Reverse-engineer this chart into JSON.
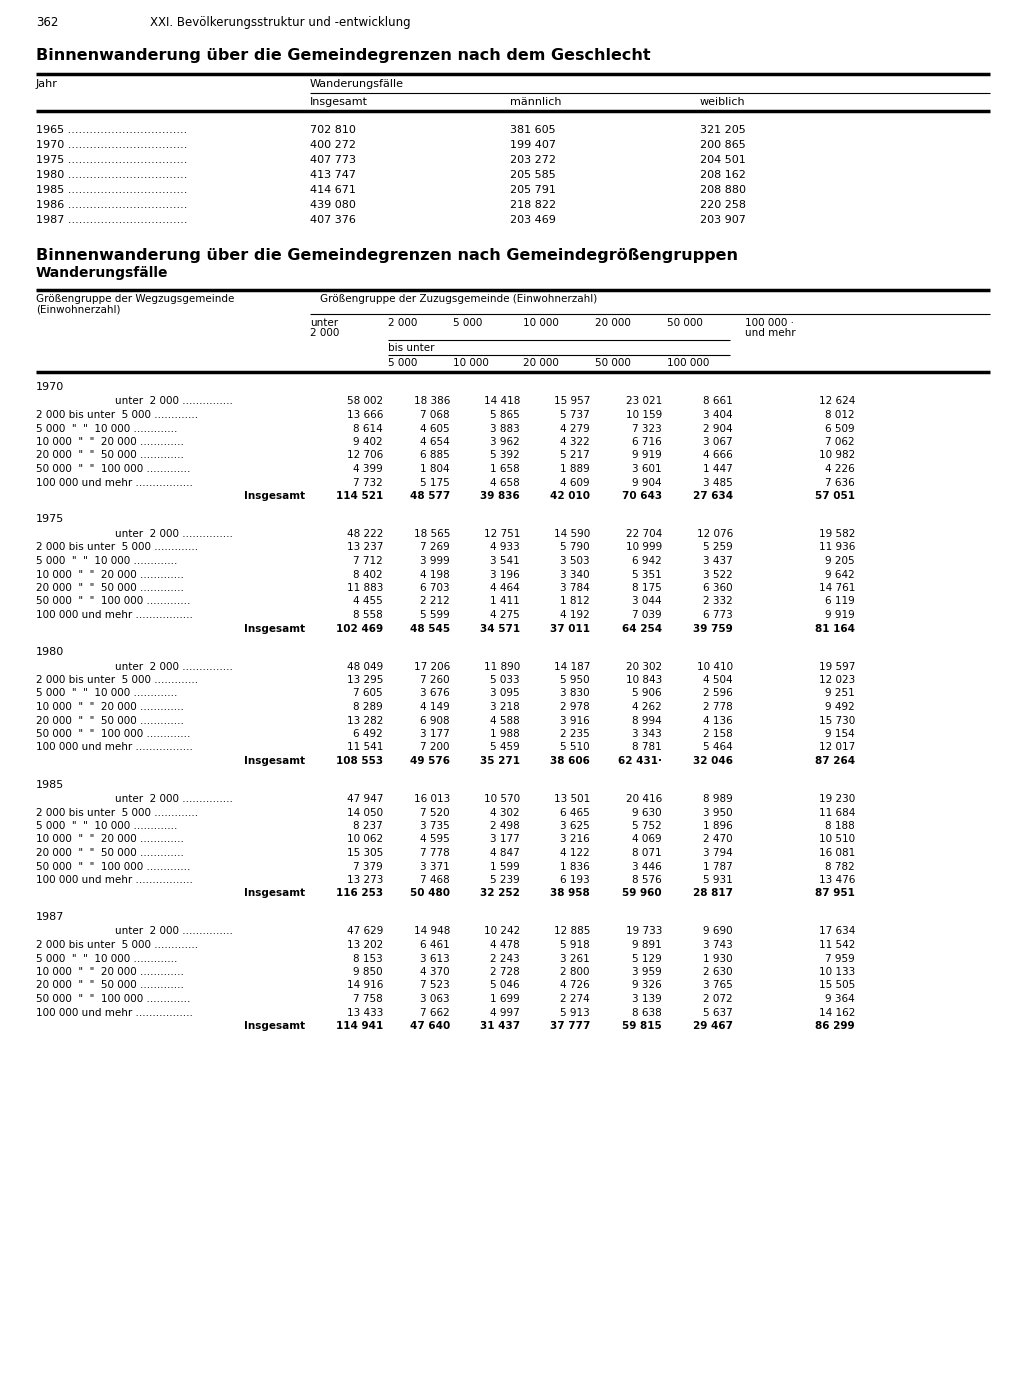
{
  "page_number": "362",
  "chapter_header": "XXI. Bevölkerungsstruktur und -entwicklung",
  "title1": "Binnenwanderung über die Gemeindegrenzen nach dem Geschlecht",
  "title2": "Binnenwanderung über die Gemeindegrenzen nach Gemeindegrößengruppen",
  "subtitle2": "Wanderungsfälle",
  "table1_subheader": "Wanderungsfälle",
  "table1_data": [
    [
      "1965",
      "702 810",
      "381 605",
      "321 205"
    ],
    [
      "1970",
      "400 272",
      "199 407",
      "200 865"
    ],
    [
      "1975",
      "407 773",
      "203 272",
      "204 501"
    ],
    [
      "1980",
      "413 747",
      "205 585",
      "208 162"
    ],
    [
      "1985",
      "414 671",
      "205 791",
      "208 880"
    ],
    [
      "1986",
      "439 080",
      "218 822",
      "220 258"
    ],
    [
      "1987",
      "407 376",
      "203 469",
      "203 907"
    ]
  ],
  "year_blocks": [
    {
      "year": "1970",
      "rows": [
        [
          "unter  2 000",
          "58 002",
          "18 386",
          "14 418",
          "15 957",
          "23 021",
          "8 661",
          "12 624"
        ],
        [
          "2 000 bis unter  5 000",
          "13 666",
          "7 068",
          "5 865",
          "5 737",
          "10 159",
          "3 404",
          "8 012"
        ],
        [
          "5 000",
          "8 614",
          "4 605",
          "3 883",
          "4 279",
          "7 323",
          "2 904",
          "6 509"
        ],
        [
          "10 000",
          "9 402",
          "4 654",
          "3 962",
          "4 322",
          "6 716",
          "3 067",
          "7 062"
        ],
        [
          "20 000",
          "12 706",
          "6 885",
          "5 392",
          "5 217",
          "9 919",
          "4 666",
          "10 982"
        ],
        [
          "50 000",
          "4 399",
          "1 804",
          "1 658",
          "1 889",
          "3 601",
          "1 447",
          "4 226"
        ],
        [
          "100 000 und mehr",
          "7 732",
          "5 175",
          "4 658",
          "4 609",
          "9 904",
          "3 485",
          "7 636"
        ],
        [
          "Insgesamt",
          "114 521",
          "48 577",
          "39 836",
          "42 010",
          "70 643",
          "27 634",
          "57 051"
        ]
      ]
    },
    {
      "year": "1975",
      "rows": [
        [
          "unter  2 000",
          "48 222",
          "18 565",
          "12 751",
          "14 590",
          "22 704",
          "12 076",
          "19 582"
        ],
        [
          "2 000 bis unter  5 000",
          "13 237",
          "7 269",
          "4 933",
          "5 790",
          "10 999",
          "5 259",
          "11 936"
        ],
        [
          "5 000",
          "7 712",
          "3 999",
          "3 541",
          "3 503",
          "6 942",
          "3 437",
          "9 205"
        ],
        [
          "10 000",
          "8 402",
          "4 198",
          "3 196",
          "3 340",
          "5 351",
          "3 522",
          "9 642"
        ],
        [
          "20 000",
          "11 883",
          "6 703",
          "4 464",
          "3 784",
          "8 175",
          "6 360",
          "14 761"
        ],
        [
          "50 000",
          "4 455",
          "2 212",
          "1 411",
          "1 812",
          "3 044",
          "2 332",
          "6 119"
        ],
        [
          "100 000 und mehr",
          "8 558",
          "5 599",
          "4 275",
          "4 192",
          "7 039",
          "6 773",
          "9 919"
        ],
        [
          "Insgesamt",
          "102 469",
          "48 545",
          "34 571",
          "37 011",
          "64 254",
          "39 759",
          "81 164"
        ]
      ]
    },
    {
      "year": "1980",
      "rows": [
        [
          "unter  2 000",
          "48 049",
          "17 206",
          "11 890",
          "14 187",
          "20 302",
          "10 410",
          "19 597"
        ],
        [
          "2 000 bis unter  5 000",
          "13 295",
          "7 260",
          "5 033",
          "5 950",
          "10 843",
          "4 504",
          "12 023"
        ],
        [
          "5 000",
          "7 605",
          "3 676",
          "3 095",
          "3 830",
          "5 906",
          "2 596",
          "9 251"
        ],
        [
          "10 000",
          "8 289",
          "4 149",
          "3 218",
          "2 978",
          "4 262",
          "2 778",
          "9 492"
        ],
        [
          "20 000",
          "13 282",
          "6 908",
          "4 588",
          "3 916",
          "8 994",
          "4 136",
          "15 730"
        ],
        [
          "50 000",
          "6 492",
          "3 177",
          "1 988",
          "2 235",
          "3 343",
          "2 158",
          "9 154"
        ],
        [
          "100 000 und mehr",
          "11 541",
          "7 200",
          "5 459",
          "5 510",
          "8 781",
          "5 464",
          "12 017"
        ],
        [
          "Insgesamt",
          "108 553",
          "49 576",
          "35 271",
          "38 606",
          "62 431·",
          "32 046",
          "87 264"
        ]
      ]
    },
    {
      "year": "1985",
      "rows": [
        [
          "unter  2 000",
          "47 947",
          "16 013",
          "10 570",
          "13 501",
          "20 416",
          "8 989",
          "19 230"
        ],
        [
          "2 000 bis unter  5 000",
          "14 050",
          "7 520",
          "4 302",
          "6 465",
          "9 630",
          "3 950",
          "11 684"
        ],
        [
          "5 000",
          "8 237",
          "3 735",
          "2 498",
          "3 625",
          "5 752",
          "1 896",
          "8 188"
        ],
        [
          "10 000",
          "10 062",
          "4 595",
          "3 177",
          "3 216",
          "4 069",
          "2 470",
          "10 510"
        ],
        [
          "20 000",
          "15 305",
          "7 778",
          "4 847",
          "4 122",
          "8 071",
          "3 794",
          "16 081"
        ],
        [
          "50 000",
          "7 379",
          "3 371",
          "1 599",
          "1 836",
          "3 446",
          "1 787",
          "8 782"
        ],
        [
          "100 000 und mehr",
          "13 273",
          "7 468",
          "5 239",
          "6 193",
          "8 576",
          "5 931",
          "13 476"
        ],
        [
          "Insgesamt",
          "116 253",
          "50 480",
          "32 252",
          "38 958",
          "59 960",
          "28 817",
          "87 951"
        ]
      ]
    },
    {
      "year": "1987",
      "rows": [
        [
          "unter  2 000",
          "47 629",
          "14 948",
          "10 242",
          "12 885",
          "19 733",
          "9 690",
          "17 634"
        ],
        [
          "2 000 bis unter  5 000",
          "13 202",
          "6 461",
          "4 478",
          "5 918",
          "9 891",
          "3 743",
          "11 542"
        ],
        [
          "5 000",
          "8 153",
          "3 613",
          "2 243",
          "3 261",
          "5 129",
          "1 930",
          "7 959"
        ],
        [
          "10 000",
          "9 850",
          "4 370",
          "2 728",
          "2 800",
          "3 959",
          "2 630",
          "10 133"
        ],
        [
          "20 000",
          "14 916",
          "7 523",
          "5 046",
          "4 726",
          "9 326",
          "3 765",
          "15 505"
        ],
        [
          "50 000",
          "7 758",
          "3 063",
          "1 699",
          "2 274",
          "3 139",
          "2 072",
          "9 364"
        ],
        [
          "100 000 und mehr",
          "13 433",
          "7 662",
          "4 997",
          "5 913",
          "8 638",
          "5 637",
          "14 162"
        ],
        [
          "Insgesamt",
          "114 941",
          "47 640",
          "31 437",
          "37 777",
          "59 815",
          "29 467",
          "86 299"
        ]
      ]
    }
  ]
}
